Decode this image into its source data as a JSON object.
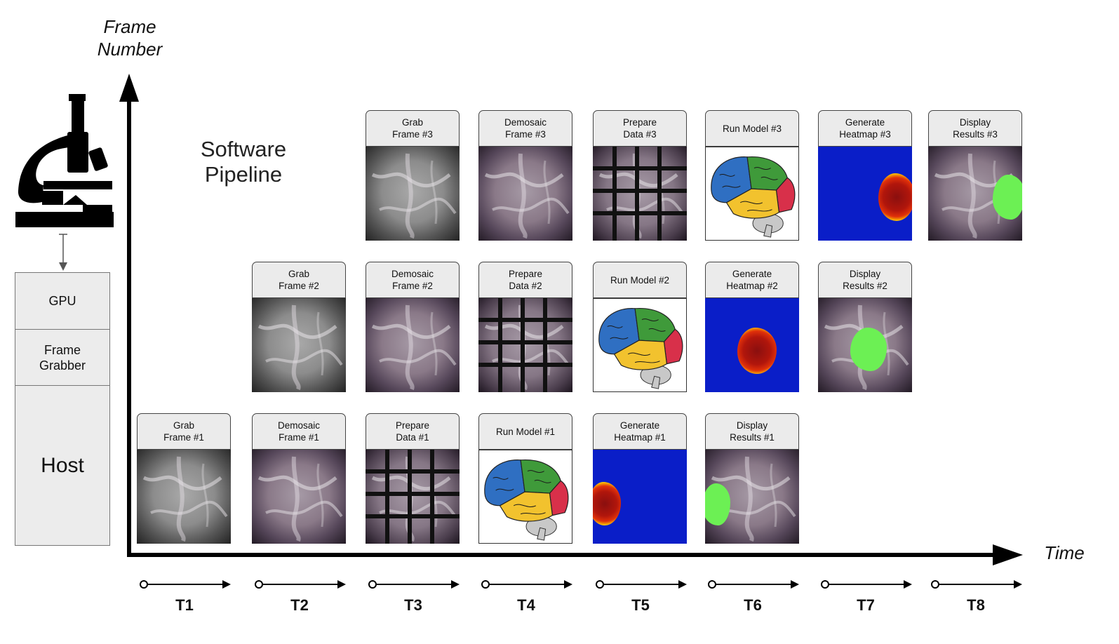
{
  "axes": {
    "y_label": "Frame\nNumber",
    "x_label": "Time"
  },
  "pipeline_title": "Software\nPipeline",
  "hardware": {
    "gpu": "GPU",
    "frame_grabber": "Frame\nGrabber",
    "host": "Host"
  },
  "rows": [
    {
      "frame": 3,
      "cards": [
        {
          "label": "Grab\nFrame #3",
          "image": "gray"
        },
        {
          "label": "Demosaic\nFrame #3",
          "image": "pink"
        },
        {
          "label": "Prepare\nData #3",
          "image": "grid"
        },
        {
          "label": "Run Model #3",
          "image": "brain"
        },
        {
          "label": "Generate\nHeatmap #3",
          "image": "heat"
        },
        {
          "label": "Display\nResults #3",
          "image": "result"
        }
      ]
    },
    {
      "frame": 2,
      "cards": [
        {
          "label": "Grab\nFrame #2",
          "image": "gray"
        },
        {
          "label": "Demosaic\nFrame #2",
          "image": "pink"
        },
        {
          "label": "Prepare\nData #2",
          "image": "grid"
        },
        {
          "label": "Run Model #2",
          "image": "brain"
        },
        {
          "label": "Generate\nHeatmap #2",
          "image": "heat"
        },
        {
          "label": "Display\nResults #2",
          "image": "result"
        }
      ]
    },
    {
      "frame": 1,
      "cards": [
        {
          "label": "Grab\nFrame #1",
          "image": "gray"
        },
        {
          "label": "Demosaic\nFrame #1",
          "image": "pink"
        },
        {
          "label": "Prepare\nData #1",
          "image": "grid"
        },
        {
          "label": "Run Model #1",
          "image": "brain"
        },
        {
          "label": "Generate\nHeatmap #1",
          "image": "heat"
        },
        {
          "label": "Display\nResults #1",
          "image": "result"
        }
      ]
    }
  ],
  "time_steps": [
    "T1",
    "T2",
    "T3",
    "T4",
    "T5",
    "T6",
    "T7",
    "T8"
  ],
  "icons": [
    "microscope-icon"
  ],
  "colors": {
    "heatmap_background": "#0a1ec8",
    "result_overlay": "#6cf054",
    "brain_frontal": "#2f6fc2",
    "brain_parietal": "#3f9a3a",
    "brain_temporal": "#f2c22e",
    "brain_occipital": "#d8304a",
    "brain_cerebellum": "#c8c8c8"
  }
}
